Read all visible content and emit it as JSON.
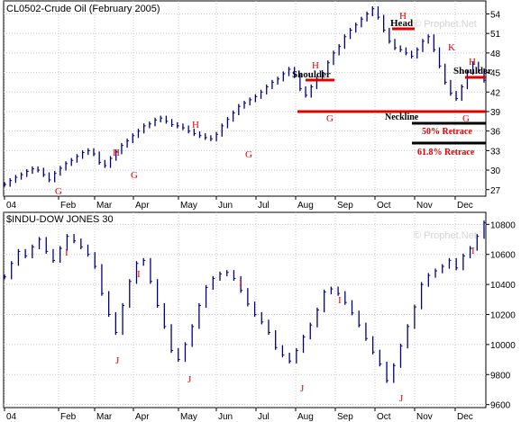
{
  "chart_data": [
    {
      "type": "line",
      "title": "CL0502-Crude Oil (February 2005)",
      "watermark": "© Prophet.Net",
      "x_ticks": [
        "04",
        "Feb",
        "Mar",
        "Apr",
        "May",
        "Jun",
        "Jul",
        "Aug",
        "Sep",
        "Oct",
        "Nov",
        "Dec"
      ],
      "y_ticks": [
        27,
        30,
        33,
        36,
        39,
        42,
        45,
        48,
        51,
        54
      ],
      "ylim": [
        26,
        56
      ],
      "grid": true,
      "series": [
        {
          "values": [
            27.8,
            28.4,
            28.9,
            29.3,
            29.8,
            30.2,
            30.0,
            29.3,
            28.5,
            29.5,
            30.3,
            31.0,
            31.5,
            32.1,
            32.7,
            33.0,
            32.5,
            31.2,
            30.7,
            31.8,
            32.8,
            33.8,
            34.5,
            35.3,
            36.0,
            36.8,
            37.1,
            37.7,
            38.0,
            37.5,
            37.0,
            36.8,
            36.5,
            36.0,
            35.6,
            35.3,
            35.0,
            34.8,
            35.5,
            36.8,
            37.8,
            38.8,
            39.8,
            40.3,
            40.8,
            41.3,
            42.0,
            42.8,
            43.5,
            44.0,
            44.8,
            45.5,
            44.5,
            42.5,
            41.5,
            42.8,
            44.0,
            45.0,
            46.5,
            48.0,
            49.0,
            50.5,
            51.5,
            52.3,
            53.2,
            54.0,
            54.8,
            53.5,
            51.5,
            49.8,
            48.8,
            48.5,
            48.0,
            47.5,
            48.5,
            49.8,
            50.5,
            48.5,
            46.0,
            43.5,
            41.8,
            41.0,
            42.8,
            45.0,
            46.3,
            45.3,
            43.8
          ]
        }
      ],
      "annotations": {
        "H_labels": [
          "H",
          "H",
          "H",
          "H"
        ],
        "G_labels": [
          "G",
          "G",
          "G",
          "G",
          "G"
        ],
        "head": "Head",
        "head_h": "H",
        "shoulder_left": "Shoulder",
        "shoulder_right": "Shoulder",
        "k": "K",
        "neckline": "Neckline",
        "retrace_50": "50% Retrace",
        "retrace_618": "61.8% Retrace"
      }
    },
    {
      "type": "line",
      "title": "$INDU-DOW JONES 30",
      "watermark": "© Prophet.Net",
      "x_ticks": [
        "04",
        "Feb",
        "Mar",
        "Apr",
        "May",
        "Jun",
        "Jul",
        "Aug",
        "Sep",
        "Oct",
        "Nov",
        "Dec"
      ],
      "y_ticks": [
        9600,
        9800,
        10000,
        10200,
        10400,
        10600,
        10800
      ],
      "ylim": [
        9580,
        10880
      ],
      "grid": true,
      "series": [
        {
          "values": [
            10450,
            10540,
            10620,
            10590,
            10650,
            10700,
            10620,
            10560,
            10640,
            10720,
            10690,
            10650,
            10600,
            10520,
            10340,
            10200,
            10080,
            10260,
            10420,
            10540,
            10560,
            10420,
            10260,
            10120,
            9960,
            9900,
            10000,
            10120,
            10260,
            10380,
            10440,
            10470,
            10480,
            10440,
            10360,
            10270,
            10200,
            10150,
            10080,
            9980,
            9930,
            9890,
            9960,
            10050,
            10130,
            10230,
            10350,
            10370,
            10340,
            10280,
            10210,
            10130,
            10040,
            9950,
            9870,
            9760,
            9860,
            9990,
            10120,
            10250,
            10400,
            10460,
            10490,
            10520,
            10560,
            10510,
            10590,
            10640,
            10720,
            10810
          ]
        }
      ],
      "annotations": {
        "I_labels": [
          "I",
          "I",
          "I",
          "I",
          "I"
        ],
        "J_labels": [
          "J",
          "J",
          "J",
          "J",
          "J"
        ]
      }
    }
  ],
  "colors": {
    "price": "#000080",
    "marker": "#e00000",
    "support": "#e00000",
    "retrace": "#000000",
    "grid": "#c8c8c8",
    "border": "#000000",
    "watermark": "#d4d4d4"
  }
}
